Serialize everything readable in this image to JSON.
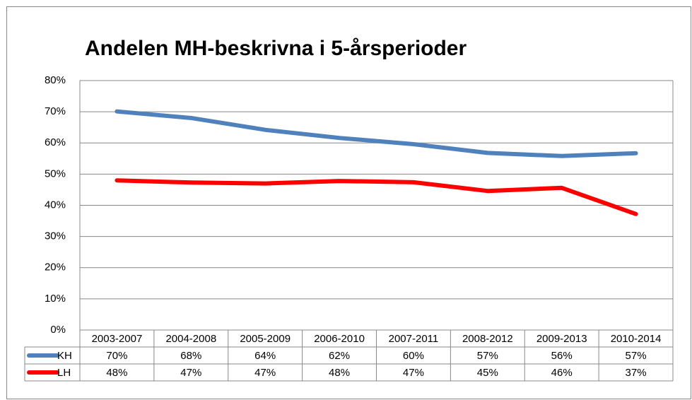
{
  "chart_data": {
    "type": "line",
    "title": "Andelen MH-beskrivna i 5-årsperioder",
    "categories": [
      "2003-2007",
      "2004-2008",
      "2005-2009",
      "2006-2010",
      "2007-2011",
      "2008-2012",
      "2009-2013",
      "2010-2014"
    ],
    "series": [
      {
        "name": "KH",
        "color": "#4f81bd",
        "values": [
          70.1,
          68.0,
          64.2,
          61.6,
          59.6,
          56.8,
          55.8,
          56.7
        ],
        "value_labels": [
          "70%",
          "68%",
          "64%",
          "62%",
          "60%",
          "57%",
          "56%",
          "57%"
        ]
      },
      {
        "name": "LH",
        "color": "#ff0000",
        "values": [
          48.0,
          47.3,
          47.0,
          47.8,
          47.4,
          44.6,
          45.6,
          37.2
        ],
        "value_labels": [
          "48%",
          "47%",
          "47%",
          "48%",
          "47%",
          "45%",
          "46%",
          "37%"
        ]
      }
    ],
    "ylim": [
      0,
      80
    ],
    "yticks": [
      {
        "value": 0,
        "label": "0%"
      },
      {
        "value": 10,
        "label": "10%"
      },
      {
        "value": 20,
        "label": "20%"
      },
      {
        "value": 30,
        "label": "30%"
      },
      {
        "value": 40,
        "label": "40%"
      },
      {
        "value": 50,
        "label": "50%"
      },
      {
        "value": 60,
        "label": "60%"
      },
      {
        "value": 70,
        "label": "70%"
      },
      {
        "value": 80,
        "label": "80%"
      }
    ],
    "grid": true
  }
}
